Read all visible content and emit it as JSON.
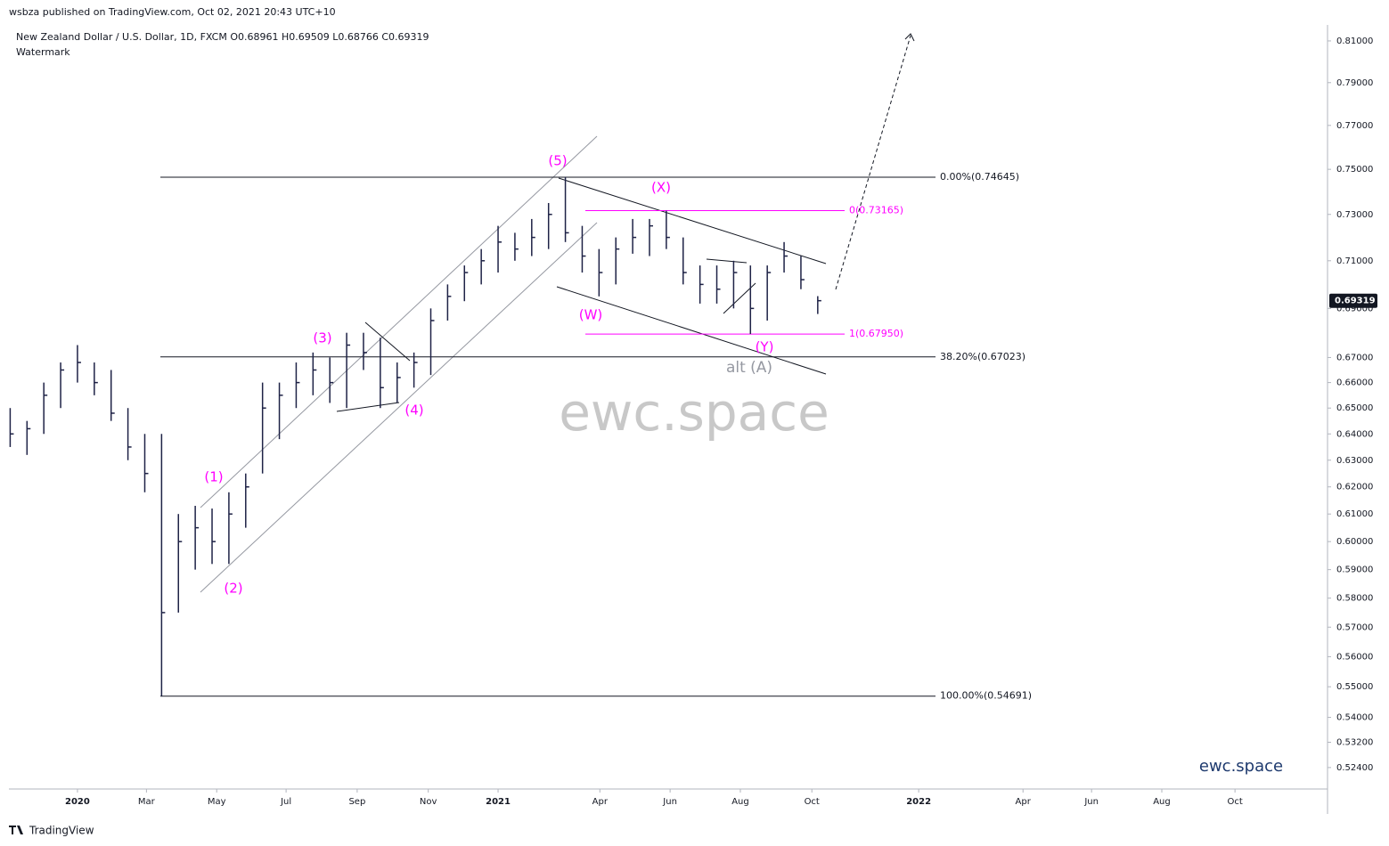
{
  "header": {
    "publisher": "wsbza published on TradingView.com, Oct 02, 2021 20:43 UTC+10",
    "symbol_line": "New Zealand Dollar / U.S. Dollar, 1D, FXCM  O0.68961 H0.69509 L0.68766 C0.69319",
    "indicator": "Watermark"
  },
  "chart_data": {
    "type": "ohlc",
    "color": "#1e2246",
    "log_scale": true,
    "grid": false,
    "x": [
      2019.84,
      2019.88,
      2019.92,
      2019.96,
      2020.0,
      2020.04,
      2020.08,
      2020.12,
      2020.16,
      2020.2,
      2020.24,
      2020.28,
      2020.32,
      2020.36,
      2020.4,
      2020.44,
      2020.48,
      2020.52,
      2020.56,
      2020.6,
      2020.64,
      2020.68,
      2020.72,
      2020.76,
      2020.8,
      2020.84,
      2020.88,
      2020.92,
      2020.96,
      2021.0,
      2021.04,
      2021.08,
      2021.12,
      2021.16,
      2021.2,
      2021.24,
      2021.28,
      2021.32,
      2021.36,
      2021.4,
      2021.44,
      2021.48,
      2021.52,
      2021.56,
      2021.6,
      2021.64,
      2021.68,
      2021.72,
      2021.76
    ],
    "high": [
      0.65,
      0.645,
      0.66,
      0.668,
      0.675,
      0.668,
      0.665,
      0.65,
      0.64,
      0.64,
      0.61,
      0.613,
      0.612,
      0.618,
      0.625,
      0.66,
      0.66,
      0.668,
      0.672,
      0.67,
      0.68,
      0.68,
      0.678,
      0.668,
      0.672,
      0.69,
      0.7,
      0.708,
      0.715,
      0.725,
      0.722,
      0.728,
      0.735,
      0.7465,
      0.725,
      0.715,
      0.72,
      0.728,
      0.728,
      0.7316,
      0.72,
      0.708,
      0.708,
      0.71,
      0.708,
      0.708,
      0.718,
      0.712,
      0.6951
    ],
    "low": [
      0.635,
      0.632,
      0.64,
      0.65,
      0.66,
      0.655,
      0.645,
      0.63,
      0.618,
      0.5469,
      0.575,
      0.59,
      0.592,
      0.592,
      0.605,
      0.625,
      0.638,
      0.65,
      0.655,
      0.652,
      0.65,
      0.665,
      0.65,
      0.652,
      0.658,
      0.663,
      0.685,
      0.693,
      0.7,
      0.705,
      0.71,
      0.712,
      0.715,
      0.718,
      0.705,
      0.695,
      0.7,
      0.713,
      0.712,
      0.715,
      0.7,
      0.692,
      0.692,
      0.69,
      0.6795,
      0.685,
      0.705,
      0.698,
      0.6877
    ],
    "close": [
      0.64,
      0.642,
      0.655,
      0.665,
      0.668,
      0.66,
      0.648,
      0.635,
      0.625,
      0.575,
      0.6,
      0.605,
      0.6,
      0.61,
      0.62,
      0.65,
      0.655,
      0.66,
      0.665,
      0.66,
      0.675,
      0.672,
      0.658,
      0.662,
      0.668,
      0.685,
      0.695,
      0.705,
      0.71,
      0.718,
      0.715,
      0.72,
      0.73,
      0.722,
      0.712,
      0.705,
      0.715,
      0.72,
      0.725,
      0.72,
      0.705,
      0.7,
      0.698,
      0.705,
      0.69,
      0.705,
      0.712,
      0.702,
      0.6932
    ],
    "ylim": [
      0.5173,
      0.8178
    ],
    "yticks": [
      {
        "value": 0.81,
        "label": "0.81000"
      },
      {
        "value": 0.79,
        "label": "0.79000"
      },
      {
        "value": 0.77,
        "label": "0.77000"
      },
      {
        "value": 0.75,
        "label": "0.75000"
      },
      {
        "value": 0.73,
        "label": "0.73000"
      },
      {
        "value": 0.71,
        "label": "0.71000"
      },
      {
        "value": 0.69,
        "label": "0.69000"
      },
      {
        "value": 0.67,
        "label": "0.67000"
      },
      {
        "value": 0.66,
        "label": "0.66000"
      },
      {
        "value": 0.65,
        "label": "0.65000"
      },
      {
        "value": 0.64,
        "label": "0.64000"
      },
      {
        "value": 0.63,
        "label": "0.63000"
      },
      {
        "value": 0.62,
        "label": "0.62000"
      },
      {
        "value": 0.61,
        "label": "0.61000"
      },
      {
        "value": 0.6,
        "label": "0.60000"
      },
      {
        "value": 0.59,
        "label": "0.59000"
      },
      {
        "value": 0.58,
        "label": "0.58000"
      },
      {
        "value": 0.57,
        "label": "0.57000"
      },
      {
        "value": 0.56,
        "label": "0.56000"
      },
      {
        "value": 0.55,
        "label": "0.55000"
      },
      {
        "value": 0.54,
        "label": "0.54000"
      },
      {
        "value": 0.532,
        "label": "0.53200"
      },
      {
        "value": 0.524,
        "label": "0.52400"
      }
    ],
    "xlim": [
      2019.837,
      2022.972
    ],
    "xticks": [
      2020,
      {
        "value": 2020.164,
        "label": "Mar"
      },
      {
        "value": 2020.331,
        "label": "May"
      },
      {
        "value": 2020.496,
        "label": "Jul"
      },
      {
        "value": 2020.665,
        "label": "Sep"
      },
      {
        "value": 2020.834,
        "label": "Nov"
      },
      2021,
      {
        "value": 2021.242,
        "label": "Apr"
      },
      {
        "value": 2021.409,
        "label": "Jun"
      },
      {
        "value": 2021.576,
        "label": "Aug"
      },
      {
        "value": 2021.746,
        "label": "Oct"
      },
      2022,
      {
        "value": 2022.248,
        "label": "Apr"
      },
      {
        "value": 2022.411,
        "label": "Jun"
      },
      {
        "value": 2022.578,
        "label": "Aug"
      },
      {
        "value": 2022.752,
        "label": "Oct"
      }
    ],
    "last_price": 0.69319,
    "fib_levels": [
      {
        "value": 0.74645,
        "label": "0.00%(0.74645)",
        "color": "#131722"
      },
      {
        "value": 0.67023,
        "label": "38.20%(0.67023)",
        "color": "#131722"
      },
      {
        "value": 0.54691,
        "label": "100.00%(0.54691)",
        "color": "#131722"
      },
      {
        "value": 0.73165,
        "label": "0(0.73165)",
        "color": "#ff00ff"
      },
      {
        "value": 0.6795,
        "label": "1(0.67950)",
        "color": "#ff00ff"
      }
    ],
    "wave_labels": [
      "(1)",
      "(2)",
      "(3)",
      "(4)",
      "(5)",
      "(W)",
      "(X)",
      "(Y)",
      "alt (A)"
    ]
  },
  "watermark": "ewc.space",
  "brand": "ewc.space",
  "footer": "TradingView"
}
